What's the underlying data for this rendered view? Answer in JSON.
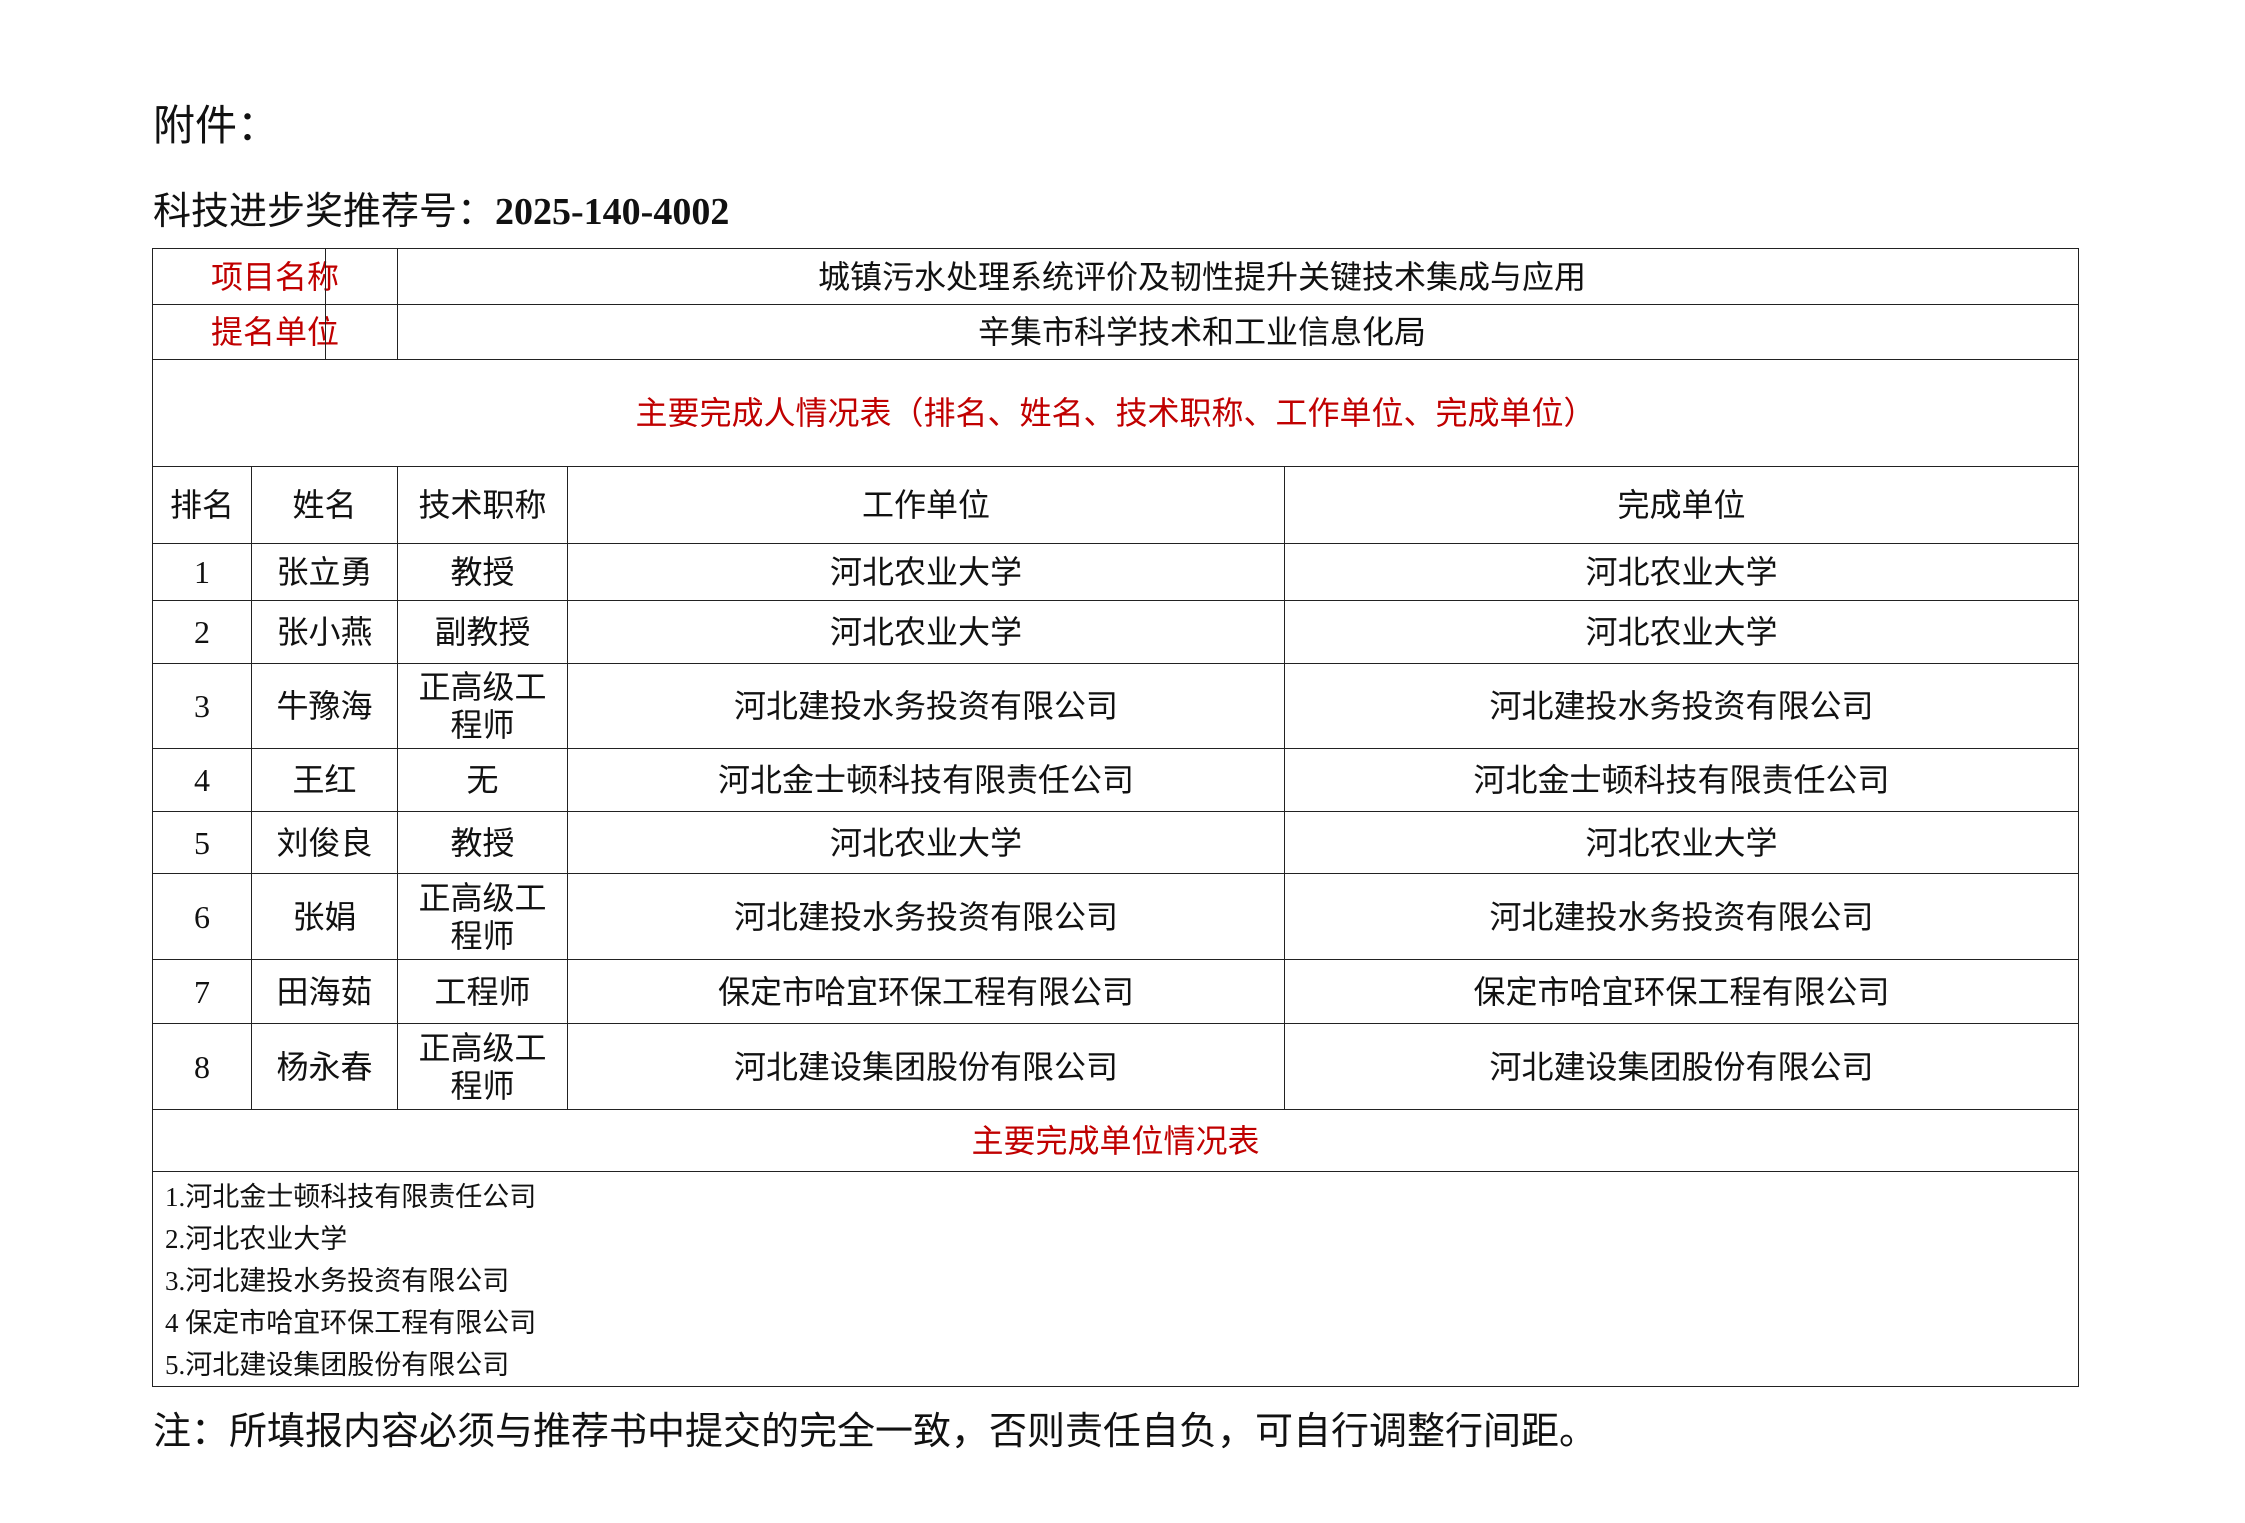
{
  "header": {
    "attachment": "附件：",
    "rec_label": "科技进步奖推荐号：",
    "rec_number": "2025-140-4002"
  },
  "project": {
    "name_label": "项目名称",
    "name": "城镇污水处理系统评价及韧性提升关键技术集成与应用",
    "nominator_label": "提名单位",
    "nominator": "辛集市科学技术和工业信息化局"
  },
  "people_section_title": "主要完成人情况表（排名、姓名、技术职称、工作单位、完成单位）",
  "columns": [
    "排名",
    "姓名",
    "技术职称",
    "工作单位",
    "完成单位"
  ],
  "rows": [
    [
      "1",
      "张立勇",
      "教授",
      "河北农业大学",
      "河北农业大学"
    ],
    [
      "2",
      "张小燕",
      "副教授",
      "河北农业大学",
      "河北农业大学"
    ],
    [
      "3",
      "牛豫海",
      "正高级工程师",
      "河北建投水务投资有限公司",
      "河北建投水务投资有限公司"
    ],
    [
      "4",
      "王红",
      "无",
      "河北金士顿科技有限责任公司",
      "河北金士顿科技有限责任公司"
    ],
    [
      "5",
      "刘俊良",
      "教授",
      "河北农业大学",
      "河北农业大学"
    ],
    [
      "6",
      "张娟",
      "正高级工程师",
      "河北建投水务投资有限公司",
      "河北建投水务投资有限公司"
    ],
    [
      "7",
      "田海茹",
      "工程师",
      "保定市哈宜环保工程有限公司",
      "保定市哈宜环保工程有限公司"
    ],
    [
      "8",
      "杨永春",
      "正高级工程师",
      "河北建设集团股份有限公司",
      "河北建设集团股份有限公司"
    ]
  ],
  "units_section_title": "主要完成单位情况表",
  "units": [
    "1.河北金士顿科技有限责任公司",
    "2.河北农业大学",
    "3.河北建投水务投资有限公司",
    "4 保定市哈宜环保工程有限公司",
    "5.河北建设集团股份有限公司"
  ],
  "note": "注：所填报内容必须与推荐书中提交的完全一致，否则责任自负，可自行调整行间距。",
  "colors": {
    "label_red": "#c00000"
  }
}
